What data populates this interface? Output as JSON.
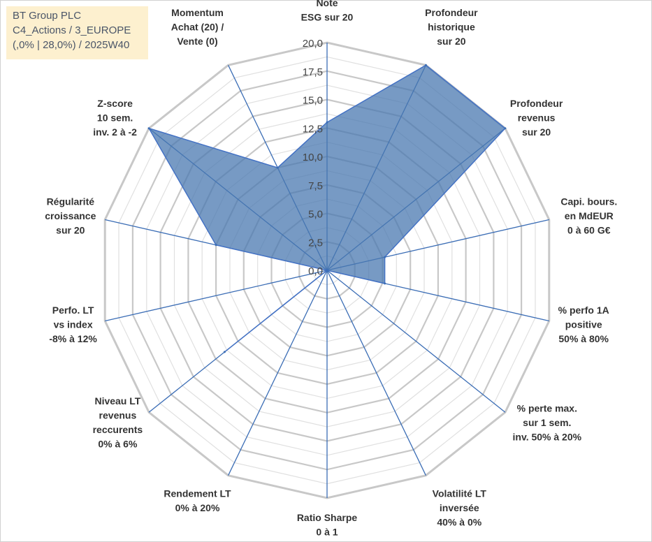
{
  "title_box": {
    "line1": "BT Group PLC",
    "line2": "C4_Actions / 3_EUROPE",
    "line3": "(,0% | 28,0%) / 2025W40"
  },
  "chart_data": {
    "type": "radar",
    "title": "BT Group PLC",
    "r_ticks": [
      "0,0",
      "2,5",
      "5,0",
      "7,5",
      "10,0",
      "12,5",
      "15,0",
      "17,5",
      "20,0"
    ],
    "rlim": [
      0,
      20
    ],
    "grid": true,
    "categories": [
      [
        "Note",
        "ESG sur 20"
      ],
      [
        "Profondeur",
        "historique",
        "sur 20"
      ],
      [
        "Profondeur",
        "revenus",
        "sur 20"
      ],
      [
        "Capi. bours.",
        "en MdEUR",
        "0 à 60 G€"
      ],
      [
        "% perfo 1A",
        "positive",
        "50% à 80%"
      ],
      [
        "% perte max.",
        "sur 1 sem.",
        "inv. 50% à 20%"
      ],
      [
        "Volatilité LT",
        "inversée",
        "40% à 0%"
      ],
      [
        "Ratio Sharpe",
        "0 à 1"
      ],
      [
        "Rendement LT",
        "0% à 20%"
      ],
      [
        "Niveau LT",
        "revenus",
        "reccurents",
        "0% à 6%"
      ],
      [
        "Perfo. LT",
        "vs index",
        "-8% à 12%"
      ],
      [
        "Régularité",
        "croissance",
        "sur 20"
      ],
      [
        "Z-score",
        "10 sem.",
        "inv. 2 à -2"
      ],
      [
        "Momentum",
        "Achat (20) /",
        "Vente (0)"
      ]
    ],
    "series": [
      {
        "name": "BT Group PLC",
        "color": "#4a78b0",
        "values": [
          13,
          20,
          20,
          5.2,
          5.2,
          0,
          0,
          0,
          0,
          11.5,
          0,
          10,
          20,
          10
        ]
      }
    ]
  }
}
